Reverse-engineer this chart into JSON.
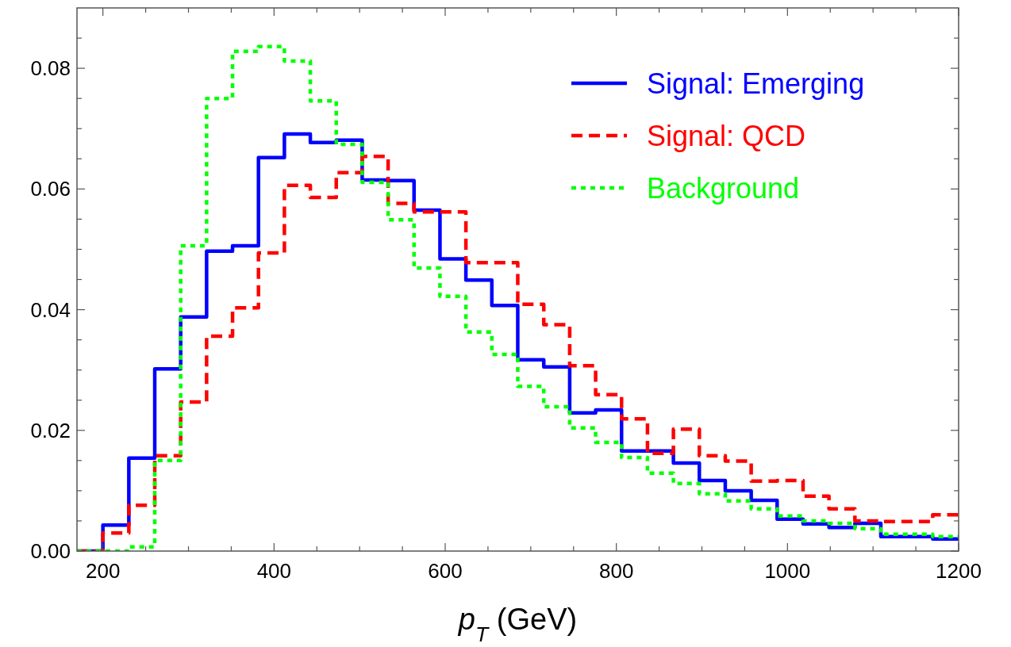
{
  "chart_data": {
    "type": "histogram",
    "xlabel": "p$_{T}$ (GeV)",
    "bins": [
      169.7,
      200,
      230.3,
      260.6,
      290.9,
      321.2,
      351.5,
      381.8,
      412.1,
      442.4,
      472.7,
      503,
      533.3,
      563.6,
      593.9,
      624.2,
      654.5,
      684.8,
      715.2,
      745.5,
      775.8,
      806.1,
      836.4,
      866.7,
      897,
      927.3,
      957.6,
      987.9,
      1018.2,
      1048.5,
      1078.8,
      1109.1,
      1139.4,
      1169.7,
      1200
    ],
    "series": [
      {
        "name": "Signal: Emerging",
        "color": "#0000ff",
        "line_style": "solid",
        "values": [
          0,
          0.0043,
          0.0154,
          0.0302,
          0.0388,
          0.0497,
          0.0506,
          0.0652,
          0.0691,
          0.0677,
          0.0681,
          0.0615,
          0.0614,
          0.0565,
          0.0484,
          0.0449,
          0.0407,
          0.0317,
          0.0305,
          0.0229,
          0.0234,
          0.0166,
          0.0166,
          0.0146,
          0.0117,
          0.01,
          0.0084,
          0.0053,
          0.0045,
          0.0039,
          0.0046,
          0.0024,
          0.0024,
          0.002
        ]
      },
      {
        "name": "Signal: QCD",
        "color": "#ff0000",
        "line_style": "dashed",
        "values": [
          0,
          0.003,
          0.0076,
          0.0158,
          0.0247,
          0.0356,
          0.0403,
          0.0494,
          0.0606,
          0.0586,
          0.0627,
          0.0654,
          0.0576,
          0.0562,
          0.0562,
          0.0478,
          0.0478,
          0.0409,
          0.0375,
          0.0307,
          0.0259,
          0.0219,
          0.0162,
          0.0202,
          0.0158,
          0.0149,
          0.0116,
          0.0117,
          0.0091,
          0.007,
          0.005,
          0.0049,
          0.0049,
          0.006
        ]
      },
      {
        "name": "Background",
        "color": "#00ff00",
        "line_style": "dotted",
        "values": [
          0,
          0,
          0.0007,
          0.015,
          0.0506,
          0.075,
          0.0828,
          0.0836,
          0.0812,
          0.0746,
          0.0674,
          0.0611,
          0.0549,
          0.0469,
          0.0422,
          0.0363,
          0.0326,
          0.0273,
          0.0239,
          0.0204,
          0.018,
          0.0155,
          0.0129,
          0.0112,
          0.0095,
          0.0083,
          0.007,
          0.0058,
          0.005,
          0.0046,
          0.0037,
          0.0028,
          0.0028,
          0.0024
        ]
      }
    ],
    "xlim": [
      169.7,
      1200
    ],
    "xticks": [
      200,
      400,
      600,
      800,
      1000,
      1200
    ],
    "ylim": [
      0,
      0.09
    ],
    "yticks": [
      {
        "value": 0,
        "label": "0.00"
      },
      {
        "value": 0.02,
        "label": "0.02"
      },
      {
        "value": 0.04,
        "label": "0.04"
      },
      {
        "value": 0.06,
        "label": "0.06"
      },
      {
        "value": 0.08,
        "label": "0.08"
      }
    ],
    "legend": "top right",
    "grid": false
  }
}
